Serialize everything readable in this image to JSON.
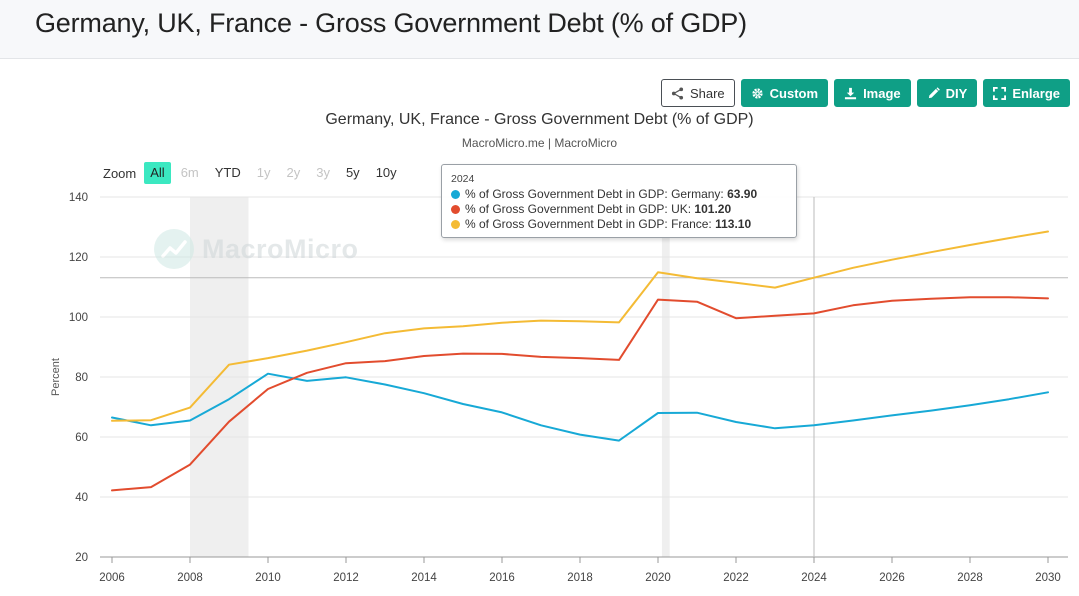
{
  "page": {
    "title": "Germany, UK, France - Gross Government Debt (% of GDP)"
  },
  "toolbar": {
    "share": "Share",
    "custom": "Custom",
    "image": "Image",
    "diy": "DIY",
    "enlarge": "Enlarge",
    "accent_color": "#0f9f86"
  },
  "zoom": {
    "label": "Zoom",
    "options": [
      "All",
      "6m",
      "YTD",
      "1y",
      "2y",
      "3y",
      "5y",
      "10y"
    ],
    "active": "All",
    "disabled": [
      "6m",
      "1y",
      "2y",
      "3y"
    ]
  },
  "watermark": {
    "text": "MacroMicro"
  },
  "tooltip": {
    "header": "2024",
    "rows": [
      {
        "label": "% of Gross Government Debt in GDP: Germany: ",
        "value": "63.90",
        "color": "#17a9d6"
      },
      {
        "label": "% of Gross Government Debt in GDP: UK: ",
        "value": "101.20",
        "color": "#e24c2e"
      },
      {
        "label": "% of Gross Government Debt in GDP: France: ",
        "value": "113.10",
        "color": "#f4bb35"
      }
    ]
  },
  "chart_data": {
    "type": "line",
    "title": "Germany, UK, France - Gross Government Debt (% of GDP)",
    "subtitle": "MacroMicro.me | MacroMicro",
    "xlabel": "",
    "ylabel": "Percent",
    "xlim": [
      2006,
      2030
    ],
    "ylim": [
      20,
      140
    ],
    "yticks": [
      20,
      40,
      60,
      80,
      100,
      120,
      140
    ],
    "xticks": [
      2006,
      2008,
      2010,
      2012,
      2014,
      2016,
      2018,
      2020,
      2022,
      2024,
      2026,
      2028,
      2030
    ],
    "grid": true,
    "recession_bands": [
      [
        2008,
        2009.5
      ],
      [
        2020.1,
        2020.3
      ]
    ],
    "crosshair": {
      "x": 2024,
      "y": 113.1
    },
    "series": [
      {
        "name": "% of Gross Government Debt in GDP: Germany",
        "color": "#17a9d6",
        "x": [
          2006,
          2007,
          2008,
          2009,
          2010,
          2011,
          2012,
          2013,
          2014,
          2015,
          2016,
          2017,
          2018,
          2019,
          2020,
          2021,
          2022,
          2023,
          2024,
          2025,
          2026,
          2027,
          2028,
          2029,
          2030
        ],
        "values": [
          66.5,
          63.9,
          65.5,
          72.6,
          81.1,
          78.7,
          79.9,
          77.5,
          74.6,
          71.0,
          68.2,
          63.9,
          60.8,
          58.8,
          68.0,
          68.1,
          65.0,
          62.9,
          63.9,
          65.5,
          67.2,
          68.8,
          70.6,
          72.6,
          74.9
        ]
      },
      {
        "name": "% of Gross Government Debt in GDP: UK",
        "color": "#e24c2e",
        "x": [
          2006,
          2007,
          2008,
          2009,
          2010,
          2011,
          2012,
          2013,
          2014,
          2015,
          2016,
          2017,
          2018,
          2019,
          2020,
          2021,
          2022,
          2023,
          2024,
          2025,
          2026,
          2027,
          2028,
          2029,
          2030
        ],
        "values": [
          42.2,
          43.3,
          50.8,
          65.1,
          76.0,
          81.4,
          84.6,
          85.3,
          87.0,
          87.8,
          87.7,
          86.7,
          86.3,
          85.7,
          105.8,
          105.1,
          99.6,
          100.4,
          101.2,
          103.9,
          105.4,
          106.1,
          106.6,
          106.6,
          106.2
        ]
      },
      {
        "name": "% of Gross Government Debt in GDP: France",
        "color": "#f4bb35",
        "x": [
          2006,
          2007,
          2008,
          2009,
          2010,
          2011,
          2012,
          2013,
          2014,
          2015,
          2016,
          2017,
          2018,
          2019,
          2020,
          2021,
          2022,
          2023,
          2024,
          2025,
          2026,
          2027,
          2028,
          2029,
          2030
        ],
        "values": [
          65.4,
          65.6,
          69.8,
          84.1,
          86.3,
          88.8,
          91.6,
          94.6,
          96.2,
          96.9,
          98.1,
          98.8,
          98.6,
          98.2,
          114.9,
          112.9,
          111.4,
          109.8,
          113.1,
          116.4,
          119.1,
          121.6,
          124.0,
          126.3,
          128.5
        ]
      }
    ]
  }
}
